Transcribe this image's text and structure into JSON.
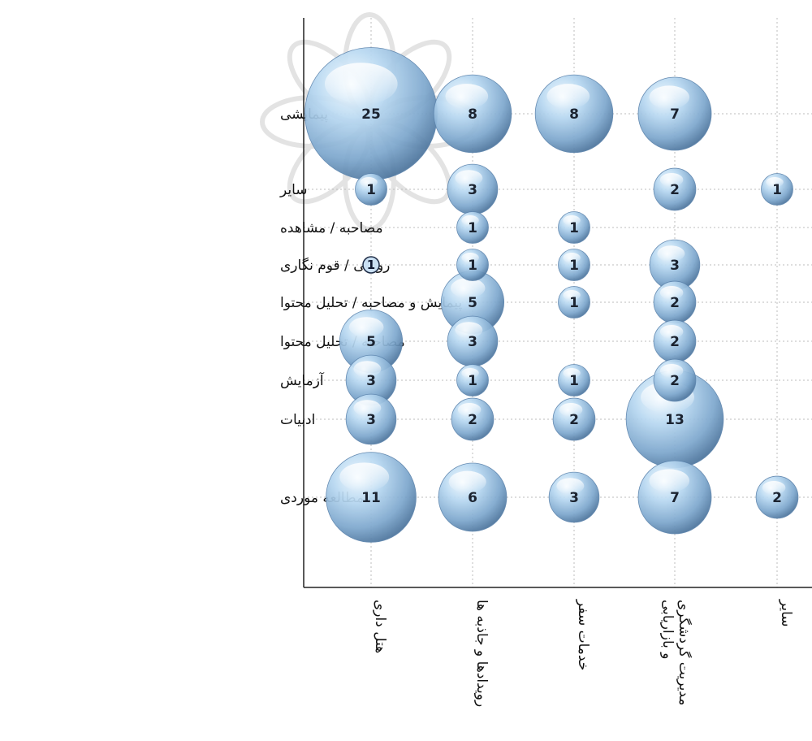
{
  "chart_data": {
    "type": "bubble",
    "title": "",
    "xlabel": "",
    "ylabel": "",
    "grid": true,
    "legend": "none",
    "categories": [
      "هتل داری",
      "رویدادها و جاذبه ها",
      "خدمات سفر",
      "مدیریت گردشگری و بازاریابی",
      "سایر"
    ],
    "rows": [
      "پیمایشی",
      "سایر",
      "مصاحبه / مشاهده",
      "روایتی / قوم نگاری",
      "پیمایش و مصاحبه / تحلیل محتوا",
      "مصاحبه / تحلیل محتوا",
      "آزمایش",
      "ادبیات",
      "مطالعه موردی"
    ],
    "points": [
      {
        "row": "پیمایشی",
        "category": "هتل داری",
        "value": 25
      },
      {
        "row": "پیمایشی",
        "category": "رویدادها و جاذبه ها",
        "value": 8
      },
      {
        "row": "پیمایشی",
        "category": "خدمات سفر",
        "value": 8
      },
      {
        "row": "پیمایشی",
        "category": "مدیریت گردشگری و بازاریابی",
        "value": 7
      },
      {
        "row": "سایر",
        "category": "هتل داری",
        "value": 1
      },
      {
        "row": "سایر",
        "category": "رویدادها و جاذبه ها",
        "value": 3
      },
      {
        "row": "سایر",
        "category": "مدیریت گردشگری و بازاریابی",
        "value": 2
      },
      {
        "row": "سایر",
        "category": "سایر",
        "value": 1
      },
      {
        "row": "مصاحبه / مشاهده",
        "category": "رویدادها و جاذبه ها",
        "value": 1
      },
      {
        "row": "مصاحبه / مشاهده",
        "category": "خدمات سفر",
        "value": 1
      },
      {
        "row": "روایتی / قوم نگاری",
        "category": "هتل داری",
        "value": 1,
        "style": "plain"
      },
      {
        "row": "روایتی / قوم نگاری",
        "category": "رویدادها و جاذبه ها",
        "value": 1
      },
      {
        "row": "روایتی / قوم نگاری",
        "category": "خدمات سفر",
        "value": 1
      },
      {
        "row": "روایتی / قوم نگاری",
        "category": "مدیریت گردشگری و بازاریابی",
        "value": 3
      },
      {
        "row": "پیمایش و مصاحبه / تحلیل محتوا",
        "category": "رویدادها و جاذبه ها",
        "value": 5
      },
      {
        "row": "پیمایش و مصاحبه / تحلیل محتوا",
        "category": "خدمات سفر",
        "value": 1
      },
      {
        "row": "پیمایش و مصاحبه / تحلیل محتوا",
        "category": "مدیریت گردشگری و بازاریابی",
        "value": 2
      },
      {
        "row": "مصاحبه / تحلیل محتوا",
        "category": "هتل داری",
        "value": 5
      },
      {
        "row": "مصاحبه / تحلیل محتوا",
        "category": "رویدادها و جاذبه ها",
        "value": 3
      },
      {
        "row": "مصاحبه / تحلیل محتوا",
        "category": "مدیریت گردشگری و بازاریابی",
        "value": 2
      },
      {
        "row": "آزمایش",
        "category": "هتل داری",
        "value": 3
      },
      {
        "row": "آزمایش",
        "category": "رویدادها و جاذبه ها",
        "value": 1
      },
      {
        "row": "آزمایش",
        "category": "خدمات سفر",
        "value": 1
      },
      {
        "row": "آزمایش",
        "category": "مدیریت گردشگری و بازاریابی",
        "value": 2
      },
      {
        "row": "ادبیات",
        "category": "هتل داری",
        "value": 3
      },
      {
        "row": "ادبیات",
        "category": "رویدادها و جاذبه ها",
        "value": 2
      },
      {
        "row": "ادبیات",
        "category": "خدمات سفر",
        "value": 2
      },
      {
        "row": "ادبیات",
        "category": "مدیریت گردشگری و بازاریابی",
        "value": 13
      },
      {
        "row": "مطالعه موردی",
        "category": "هتل داری",
        "value": 11
      },
      {
        "row": "مطالعه موردی",
        "category": "رویدادها و جاذبه ها",
        "value": 6
      },
      {
        "row": "مطالعه موردی",
        "category": "خدمات سفر",
        "value": 3
      },
      {
        "row": "مطالعه موردی",
        "category": "مدیریت گردشگری و بازاریابی",
        "value": 7
      },
      {
        "row": "مطالعه موردی",
        "category": "سایر",
        "value": 2
      }
    ],
    "colors": {
      "bubble_light": "#d9ecfb",
      "bubble_mid": "#8fb9dc",
      "bubble_dark": "#4f79a3",
      "axis": "#222222",
      "grid": "#bdbdbd",
      "watermark": "#c8c8c8"
    }
  }
}
